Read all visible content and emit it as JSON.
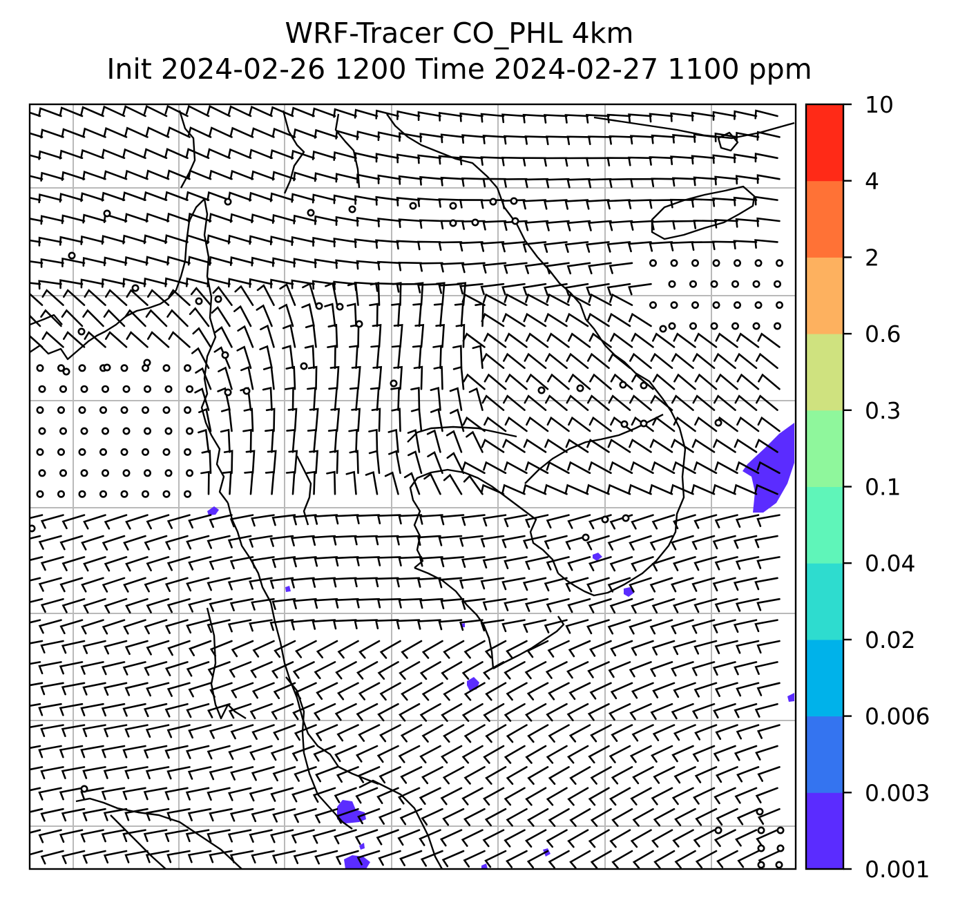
{
  "title": {
    "line1": "WRF-Tracer CO_PHL 4km",
    "line2": "Init 2024-02-26 1200 Time 2024-02-27 1100 ppm"
  },
  "colorbar": {
    "levels": [
      "0.001",
      "0.003",
      "0.006",
      "0.02",
      "0.04",
      "0.1",
      "0.3",
      "0.6",
      "2",
      "4",
      "10"
    ],
    "colors": [
      "#5b2cff",
      "#3474f0",
      "#00b2ea",
      "#2edccf",
      "#5ff5b9",
      "#8ff79c",
      "#cfe27f",
      "#fdb15f",
      "#ff7236",
      "#ff2a17"
    ]
  },
  "map": {
    "layers": [
      "coastlines",
      "state-borders",
      "gridlines",
      "wind-barbs",
      "tracer-fill"
    ],
    "calm_wind_symbol": "circle",
    "tracer_color": "#5b2cff"
  }
}
